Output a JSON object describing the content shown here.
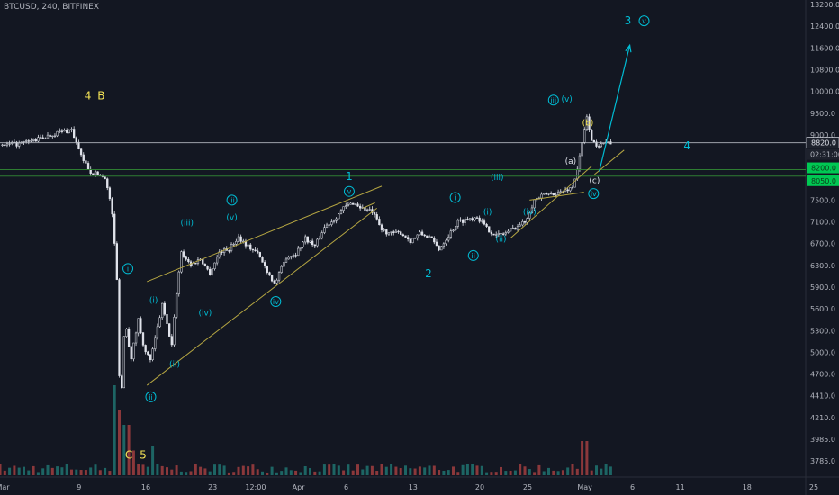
{
  "header": {
    "symbol": "BTCUSD, 240, BITFINEX"
  },
  "colors": {
    "background": "#131722",
    "candle_up": "#26a69a",
    "candle_down": "#ef5350",
    "wave_cyan": "#00bcd4",
    "wave_yellow": "#f2e256",
    "wave_white": "#e0e3eb",
    "trendline": "#b5a642",
    "projection": "#00bcd4",
    "level_line": "#c0c4cc",
    "green_line": "#2e7d32",
    "badge_green": "#00c853"
  },
  "chart_data": {
    "type": "candlestick",
    "title": "",
    "xlabel": "",
    "ylabel": "",
    "ylim": [
      3600,
      13300
    ],
    "x_range_days": [
      0,
      86
    ],
    "yticks": [
      "13200.0",
      "12400.0",
      "11600.0",
      "10800.0",
      "10000.0",
      "9500.0",
      "9000.0",
      "8500.0",
      "8000.0",
      "7500.0",
      "7100.0",
      "6700.0",
      "6300.0",
      "5900.0",
      "5600.0",
      "5300.0",
      "5000.0",
      "4700.0",
      "4410.0",
      "4210.0",
      "3985.0",
      "3785.0"
    ],
    "ytick_values": [
      13200,
      12400,
      11600,
      10800,
      10000,
      9500,
      9000,
      8500,
      8000,
      7500,
      7100,
      6700,
      6300,
      5900,
      5600,
      5300,
      5000,
      4700,
      4410,
      4210,
      3985,
      3785
    ],
    "xticks": [
      {
        "label": "Mar",
        "day": 0
      },
      {
        "label": "9",
        "day": 8
      },
      {
        "label": "16",
        "day": 15
      },
      {
        "label": "23",
        "day": 22
      },
      {
        "label": "12:00",
        "day": 26.5
      },
      {
        "label": "Apr",
        "day": 31
      },
      {
        "label": "6",
        "day": 36
      },
      {
        "label": "13",
        "day": 43
      },
      {
        "label": "20",
        "day": 50
      },
      {
        "label": "25",
        "day": 55
      },
      {
        "label": "May",
        "day": 61
      },
      {
        "label": "6",
        "day": 66
      },
      {
        "label": "11",
        "day": 71
      },
      {
        "label": "18",
        "day": 78
      },
      {
        "label": "25",
        "day": 85
      }
    ],
    "price_path": [
      [
        0,
        8760
      ],
      [
        2,
        8790
      ],
      [
        4,
        8900
      ],
      [
        6,
        9050
      ],
      [
        7.5,
        9120
      ],
      [
        8.5,
        8500
      ],
      [
        9.5,
        8150
      ],
      [
        11,
        8030
      ],
      [
        11.8,
        7200
      ],
      [
        12.3,
        5900
      ],
      [
        12.6,
        4100
      ],
      [
        13.1,
        5500
      ],
      [
        13.7,
        4900
      ],
      [
        14.5,
        5450
      ],
      [
        15.2,
        5000
      ],
      [
        15.8,
        4900
      ],
      [
        17,
        5650
      ],
      [
        18,
        5100
      ],
      [
        19,
        6550
      ],
      [
        20,
        6300
      ],
      [
        21,
        6420
      ],
      [
        22,
        6150
      ],
      [
        23,
        6550
      ],
      [
        24,
        6600
      ],
      [
        25,
        6820
      ],
      [
        26,
        6650
      ],
      [
        27,
        6520
      ],
      [
        28,
        6200
      ],
      [
        28.8,
        5950
      ],
      [
        30,
        6450
      ],
      [
        31,
        6520
      ],
      [
        32,
        6800
      ],
      [
        33,
        6650
      ],
      [
        34,
        7000
      ],
      [
        35,
        7150
      ],
      [
        36,
        7350
      ],
      [
        37,
        7450
      ],
      [
        38,
        7350
      ],
      [
        39,
        7280
      ],
      [
        40,
        6950
      ],
      [
        41,
        6880
      ],
      [
        42,
        6900
      ],
      [
        43,
        6750
      ],
      [
        44,
        6880
      ],
      [
        45,
        6820
      ],
      [
        46,
        6600
      ],
      [
        47,
        6850
      ],
      [
        48,
        7100
      ],
      [
        49,
        7150
      ],
      [
        50,
        7200
      ],
      [
        51,
        6980
      ],
      [
        52,
        6850
      ],
      [
        53,
        6900
      ],
      [
        54,
        7000
      ],
      [
        55,
        7100
      ],
      [
        56,
        7500
      ],
      [
        57,
        7620
      ],
      [
        58,
        7650
      ],
      [
        59,
        7700
      ],
      [
        60,
        7800
      ],
      [
        60.6,
        8300
      ],
      [
        61,
        8800
      ],
      [
        61.5,
        9400
      ],
      [
        62,
        8900
      ],
      [
        62.5,
        8700
      ],
      [
        63,
        8850
      ],
      [
        64,
        8820
      ]
    ],
    "volume_spikes": [
      {
        "day": 12.4,
        "value": 100
      },
      {
        "day": 12.7,
        "value": 72
      },
      {
        "day": 13.1,
        "value": 56
      },
      {
        "day": 61.3,
        "value": 38
      },
      {
        "day": 16,
        "value": 32
      }
    ],
    "current_price": {
      "value": 8820,
      "label": "8820.0"
    },
    "countdown": {
      "label": "02:31:00"
    },
    "green_levels": [
      {
        "value": 8200,
        "label": "8200.0"
      },
      {
        "value": 8050,
        "label": "8050.0"
      }
    ],
    "trendlines": [
      {
        "from": [
          15.4,
          4550
        ],
        "to": [
          39.5,
          7350
        ]
      },
      {
        "from": [
          15.4,
          6000
        ],
        "to": [
          40,
          7820
        ]
      },
      {
        "from": [
          53.5,
          6800
        ],
        "to": [
          62,
          8280
        ]
      },
      {
        "from": [
          55.5,
          7500
        ],
        "to": [
          61.2,
          7680
        ]
      },
      {
        "from": [
          62.3,
          8090
        ],
        "to": [
          65.4,
          8650
        ]
      },
      {
        "from": [
          38,
          7350
        ],
        "to": [
          39.3,
          7450
        ]
      }
    ],
    "projection_arrow": {
      "from": [
        62.8,
        8160
      ],
      "to": [
        66,
        11700
      ]
    },
    "wave_labels": [
      {
        "text": "4",
        "day": 9.2,
        "price": 9900,
        "color": "yellow",
        "circle": false
      },
      {
        "text": "B",
        "day": 10.6,
        "price": 9900,
        "color": "yellow",
        "circle": false
      },
      {
        "text": "C",
        "day": 13.5,
        "price": 3840,
        "color": "yellow",
        "circle": false
      },
      {
        "text": "5",
        "day": 15.0,
        "price": 3840,
        "color": "yellow",
        "circle": false
      },
      {
        "text": "i",
        "day": 13.4,
        "price": 6240,
        "color": "cyan",
        "circle": true
      },
      {
        "text": "(i)",
        "day": 16.1,
        "price": 5730,
        "color": "cyan",
        "circle": false
      },
      {
        "text": "ii",
        "day": 15.8,
        "price": 4400,
        "color": "cyan",
        "circle": true
      },
      {
        "text": "(ii)",
        "day": 18.3,
        "price": 4850,
        "color": "cyan",
        "circle": false
      },
      {
        "text": "(iii)",
        "day": 19.6,
        "price": 7100,
        "color": "cyan",
        "circle": false
      },
      {
        "text": "(iv)",
        "day": 21.5,
        "price": 5560,
        "color": "cyan",
        "circle": false
      },
      {
        "text": "iii",
        "day": 24.3,
        "price": 7500,
        "color": "cyan",
        "circle": true
      },
      {
        "text": "(v)",
        "day": 24.3,
        "price": 7200,
        "color": "cyan",
        "circle": false
      },
      {
        "text": "iv",
        "day": 28.9,
        "price": 5700,
        "color": "cyan",
        "circle": true
      },
      {
        "text": "1",
        "day": 36.6,
        "price": 8050,
        "color": "cyan",
        "circle": false
      },
      {
        "text": "v",
        "day": 36.6,
        "price": 7700,
        "color": "cyan",
        "circle": true
      },
      {
        "text": "2",
        "day": 44.9,
        "price": 6150,
        "color": "cyan",
        "circle": false
      },
      {
        "text": "i",
        "day": 47.7,
        "price": 7560,
        "color": "cyan",
        "circle": true
      },
      {
        "text": "ii",
        "day": 49.6,
        "price": 6480,
        "color": "cyan",
        "circle": true
      },
      {
        "text": "(i)",
        "day": 51.1,
        "price": 7300,
        "color": "cyan",
        "circle": false
      },
      {
        "text": "(ii)",
        "day": 52.5,
        "price": 6800,
        "color": "cyan",
        "circle": false
      },
      {
        "text": "(iii)",
        "day": 52.1,
        "price": 8050,
        "color": "cyan",
        "circle": false
      },
      {
        "text": "(iv)",
        "day": 55.5,
        "price": 7300,
        "color": "cyan",
        "circle": false
      },
      {
        "text": "iii",
        "day": 58.0,
        "price": 9800,
        "color": "cyan",
        "circle": true
      },
      {
        "text": "(v)",
        "day": 59.4,
        "price": 9850,
        "color": "cyan",
        "circle": false
      },
      {
        "text": "(a)",
        "day": 59.8,
        "price": 8420,
        "color": "white",
        "circle": false
      },
      {
        "text": "(b)",
        "day": 61.6,
        "price": 9300,
        "color": "yellow",
        "circle": false
      },
      {
        "text": "(c)",
        "day": 62.3,
        "price": 7970,
        "color": "white",
        "circle": false
      },
      {
        "text": "iv",
        "day": 62.2,
        "price": 7650,
        "color": "cyan",
        "circle": true
      },
      {
        "text": "4",
        "day": 72.0,
        "price": 8750,
        "color": "cyan",
        "circle": false
      },
      {
        "text": "3",
        "day": 65.8,
        "price": 12600,
        "color": "cyan",
        "circle": false
      },
      {
        "text": "v",
        "day": 67.5,
        "price": 12600,
        "color": "cyan",
        "circle": true
      }
    ]
  }
}
